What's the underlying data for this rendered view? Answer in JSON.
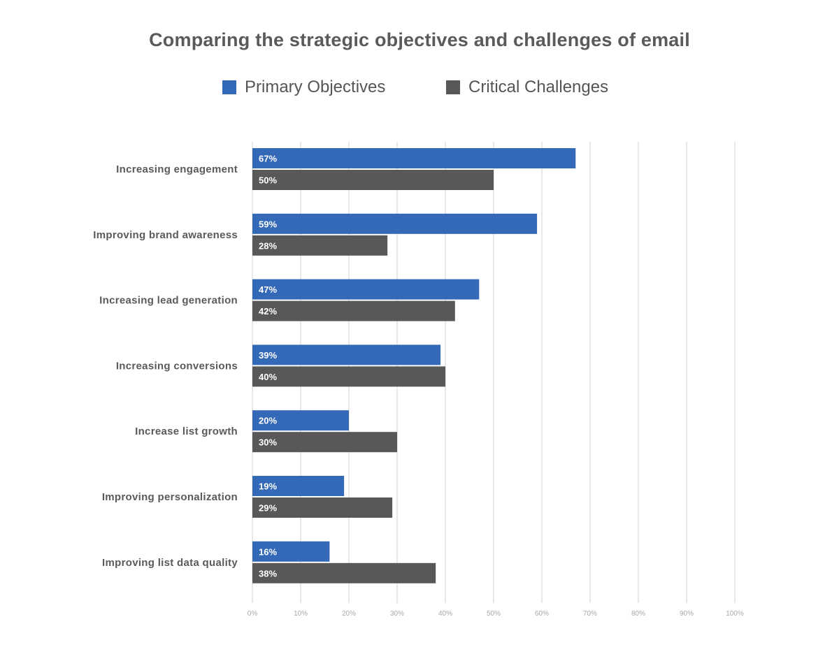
{
  "chart_data": {
    "type": "bar",
    "orientation": "horizontal",
    "title": "Comparing the strategic objectives and challenges of email",
    "categories": [
      "Increasing engagement",
      "Improving brand awareness",
      "Increasing lead generation",
      "Increasing conversions",
      "Increase list growth",
      "Improving personalization",
      "Improving list data quality"
    ],
    "series": [
      {
        "name": "Primary Objectives",
        "color": "#3469b8",
        "values": [
          67,
          59,
          47,
          39,
          20,
          19,
          16
        ],
        "labels": [
          "67%",
          "59%",
          "47%",
          "39%",
          "20%",
          "19%",
          "16%"
        ]
      },
      {
        "name": "Critical Challenges",
        "color": "#585858",
        "values": [
          50,
          28,
          42,
          40,
          30,
          29,
          38
        ],
        "labels": [
          "50%",
          "28%",
          "42%",
          "40%",
          "30%",
          "29%",
          "38%"
        ]
      }
    ],
    "xlim": [
      0,
      100
    ],
    "x_ticks": [
      "0%",
      "10%",
      "20%",
      "30%",
      "40%",
      "50%",
      "60%",
      "70%",
      "80%",
      "90%",
      "100%"
    ],
    "grid": true,
    "legend": "top-center"
  }
}
